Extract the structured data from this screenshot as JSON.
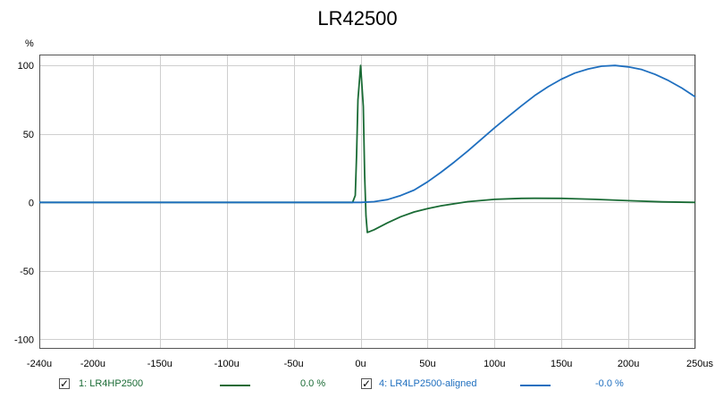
{
  "chart_data": {
    "type": "line",
    "title": "LR42500",
    "ylabel": "%",
    "x_unit": "us",
    "xlim": [
      -240,
      250
    ],
    "ylim": [
      -107,
      108
    ],
    "x_ticks": [
      {
        "v": -240,
        "label": "-240u"
      },
      {
        "v": -200,
        "label": "-200u"
      },
      {
        "v": -150,
        "label": "-150u"
      },
      {
        "v": -100,
        "label": "-100u"
      },
      {
        "v": -50,
        "label": "-50u"
      },
      {
        "v": 0,
        "label": "0u"
      },
      {
        "v": 50,
        "label": "50u"
      },
      {
        "v": 100,
        "label": "100u"
      },
      {
        "v": 150,
        "label": "150u"
      },
      {
        "v": 200,
        "label": "200u"
      },
      {
        "v": 250,
        "label": "250us"
      }
    ],
    "y_ticks": [
      {
        "v": 100,
        "label": "100"
      },
      {
        "v": 50,
        "label": "50"
      },
      {
        "v": 0,
        "label": "0"
      },
      {
        "v": -50,
        "label": "-50"
      },
      {
        "v": -100,
        "label": "-100"
      }
    ],
    "grid": true,
    "legend_position": "bottom",
    "series": [
      {
        "name": "1: LR4HP2500",
        "value_label": "0.0 %",
        "color": "#1a6b35",
        "x": [
          -240,
          -6,
          -4,
          -3,
          -2,
          0,
          2,
          3,
          4,
          5,
          10,
          20,
          30,
          40,
          50,
          60,
          80,
          100,
          120,
          130,
          150,
          175,
          200,
          225,
          250
        ],
        "y": [
          0,
          0,
          5,
          35,
          75,
          100,
          70,
          20,
          -10,
          -22,
          -20,
          -15,
          -10.5,
          -7,
          -4.5,
          -2.5,
          0.5,
          2.2,
          2.9,
          3,
          2.9,
          2.2,
          1.2,
          0.4,
          0
        ]
      },
      {
        "name": "4: LR4LP2500-aligned",
        "value_label": "-0.0 %",
        "color": "#1f6fbf",
        "x": [
          -240,
          0,
          10,
          20,
          30,
          40,
          50,
          60,
          70,
          80,
          90,
          100,
          110,
          120,
          130,
          140,
          150,
          160,
          170,
          180,
          190,
          200,
          210,
          220,
          230,
          240,
          250
        ],
        "y": [
          0,
          0,
          0.5,
          2,
          5,
          9,
          15,
          22,
          29.5,
          37.5,
          46,
          54.5,
          62.5,
          70.5,
          78,
          84.5,
          90,
          94.5,
          97.5,
          99.5,
          100,
          99,
          97,
          93.5,
          89,
          83.5,
          77
        ]
      }
    ]
  }
}
